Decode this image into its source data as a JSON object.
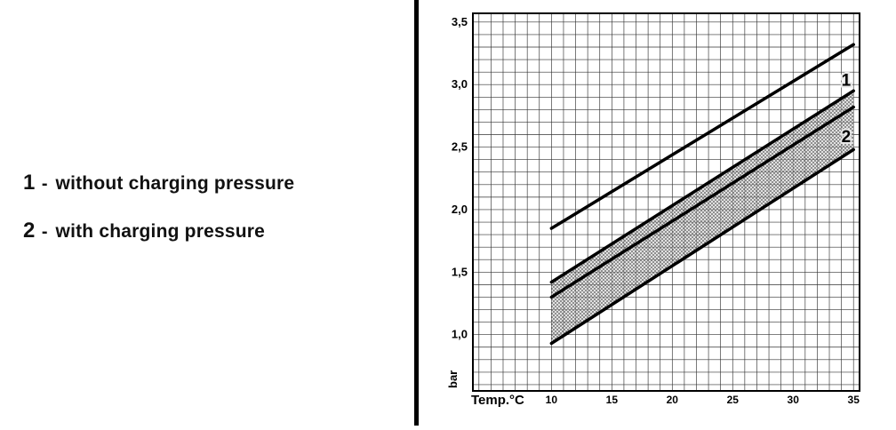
{
  "legend": {
    "items": [
      {
        "num": "1",
        "sep": "-",
        "label": "without charging pressure"
      },
      {
        "num": "2",
        "sep": "-",
        "label": "with charging pressure"
      }
    ]
  },
  "chart_data": {
    "type": "line",
    "title": "",
    "xlabel": "Temp.°C",
    "ylabel": "bar",
    "xlim": [
      3.5,
      35.5
    ],
    "ylim": [
      0.55,
      3.57
    ],
    "grid": true,
    "grid_step_x": 1,
    "grid_step_y": 0.1,
    "grid_color": "#333333",
    "x_ticks": [
      {
        "v": 10,
        "label": "10"
      },
      {
        "v": 15,
        "label": "15"
      },
      {
        "v": 20,
        "label": "20"
      },
      {
        "v": 25,
        "label": "25"
      },
      {
        "v": 30,
        "label": "30"
      },
      {
        "v": 35,
        "label": "35"
      }
    ],
    "y_ticks": [
      {
        "v": 1.0,
        "label": "1,0"
      },
      {
        "v": 1.5,
        "label": "1,5"
      },
      {
        "v": 2.0,
        "label": "2,0"
      },
      {
        "v": 2.5,
        "label": "2,5"
      },
      {
        "v": 3.0,
        "label": "3,0"
      },
      {
        "v": 3.5,
        "label": "3,5"
      }
    ],
    "series": [
      {
        "name": "line-1-without-charging-pressure",
        "points": [
          [
            10,
            1.85
          ],
          [
            35,
            3.32
          ]
        ],
        "width": 3.5
      },
      {
        "name": "line-2-upper",
        "points": [
          [
            10,
            1.42
          ],
          [
            35,
            2.95
          ]
        ],
        "width": 3.5
      },
      {
        "name": "line-2-mid",
        "points": [
          [
            10,
            1.3
          ],
          [
            35,
            2.82
          ]
        ],
        "width": 3.5
      },
      {
        "name": "line-2-lower",
        "points": [
          [
            10,
            0.93
          ],
          [
            35,
            2.48
          ]
        ],
        "width": 3.5
      }
    ],
    "band": {
      "upper": "line-2-upper",
      "lower": "line-2-lower",
      "fill": "stipple"
    },
    "labels": [
      {
        "text": "1",
        "x": 34.0,
        "y": 2.99
      },
      {
        "text": "2",
        "x": 34.0,
        "y": 2.54
      }
    ],
    "line_color": "#000000"
  }
}
